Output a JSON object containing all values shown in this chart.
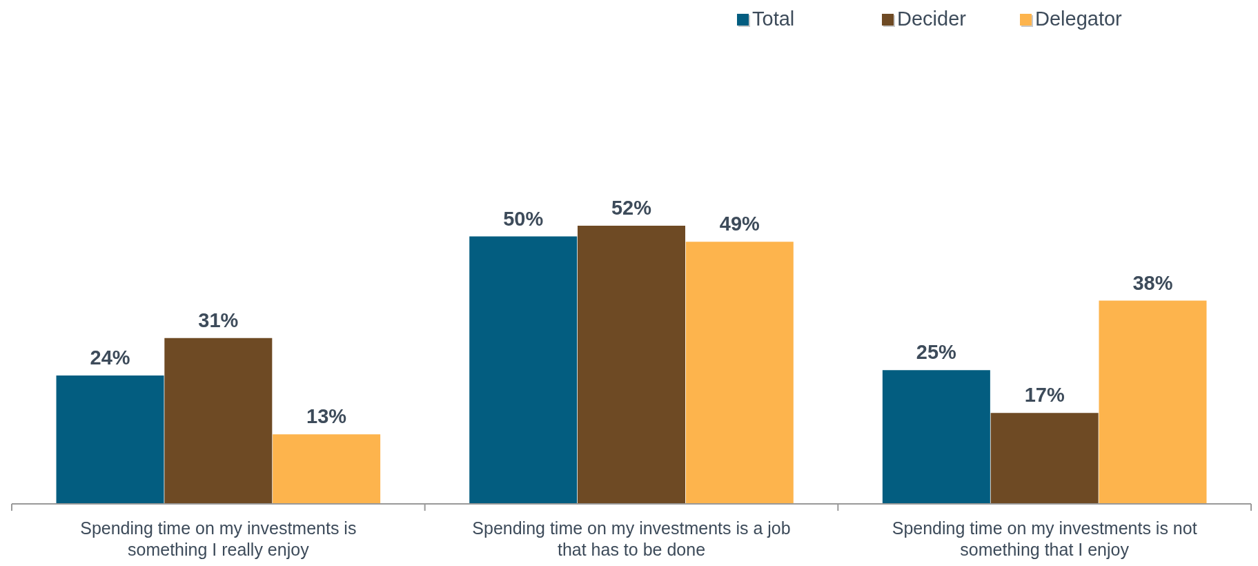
{
  "chart_data": {
    "type": "bar",
    "categories": [
      "Spending time on my investments is something I really enjoy",
      "Spending time on my investments is a job that has to be done",
      "Spending time on my investments is not something that I enjoy"
    ],
    "series": [
      {
        "name": "Total",
        "color": "#035d80",
        "values": [
          24,
          50,
          25
        ],
        "value_labels": [
          "24%",
          "50%",
          "25%"
        ]
      },
      {
        "name": "Decider",
        "color": "#6e4a24",
        "values": [
          31,
          52,
          17
        ],
        "value_labels": [
          "31%",
          "52%",
          "17%"
        ]
      },
      {
        "name": "Delegator",
        "color": "#fdb44d",
        "values": [
          13,
          49,
          38
        ],
        "value_labels": [
          "13%",
          "49%",
          "38%"
        ]
      }
    ],
    "legend": "top right",
    "grid": false
  }
}
